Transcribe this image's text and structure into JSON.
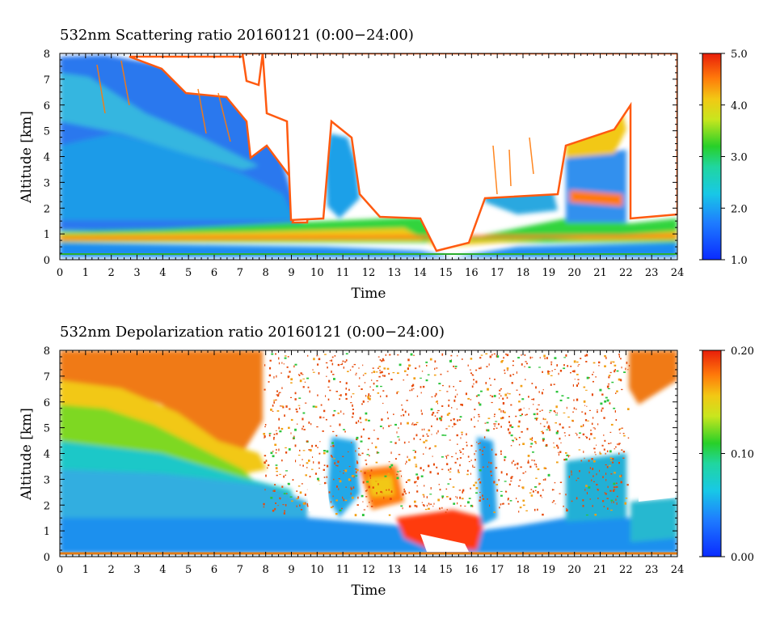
{
  "chart_data": [
    {
      "type": "heatmap",
      "title": "532nm Scattering ratio  20160121 (0:00−24:00)",
      "xlabel": "Time",
      "ylabel": "Altitude [km]",
      "xlim": [
        0,
        24
      ],
      "ylim": [
        0,
        8
      ],
      "x_ticks": [
        0,
        1,
        2,
        3,
        4,
        5,
        6,
        7,
        8,
        9,
        10,
        11,
        12,
        13,
        14,
        15,
        16,
        17,
        18,
        19,
        20,
        21,
        22,
        23,
        24
      ],
      "y_ticks": [
        0,
        1,
        2,
        3,
        4,
        5,
        6,
        7,
        8
      ],
      "colorbar": {
        "range": [
          1.0,
          5.0
        ],
        "ticks": [
          1.0,
          2.0,
          3.0,
          4.0,
          5.0
        ],
        "tick_labels": [
          "1.0",
          "2.0",
          "3.0",
          "4.0",
          "5.0"
        ]
      }
    },
    {
      "type": "heatmap",
      "title": "532nm Depolarization ratio  20160121 (0:00−24:00)",
      "xlabel": "Time",
      "ylabel": "Altitude [km]",
      "xlim": [
        0,
        24
      ],
      "ylim": [
        0,
        8
      ],
      "x_ticks": [
        0,
        1,
        2,
        3,
        4,
        5,
        6,
        7,
        8,
        9,
        10,
        11,
        12,
        13,
        14,
        15,
        16,
        17,
        18,
        19,
        20,
        21,
        22,
        23,
        24
      ],
      "y_ticks": [
        0,
        1,
        2,
        3,
        4,
        5,
        6,
        7,
        8
      ],
      "colorbar": {
        "range": [
          0.0,
          0.2
        ],
        "ticks": [
          0.0,
          0.1,
          0.2
        ],
        "tick_labels": [
          "0.00",
          "0.10",
          "0.20"
        ]
      }
    }
  ],
  "colors": {
    "low": "#1a3cff",
    "mid": "#22d422",
    "high": "#ff2a00",
    "background": "#ffffff"
  }
}
